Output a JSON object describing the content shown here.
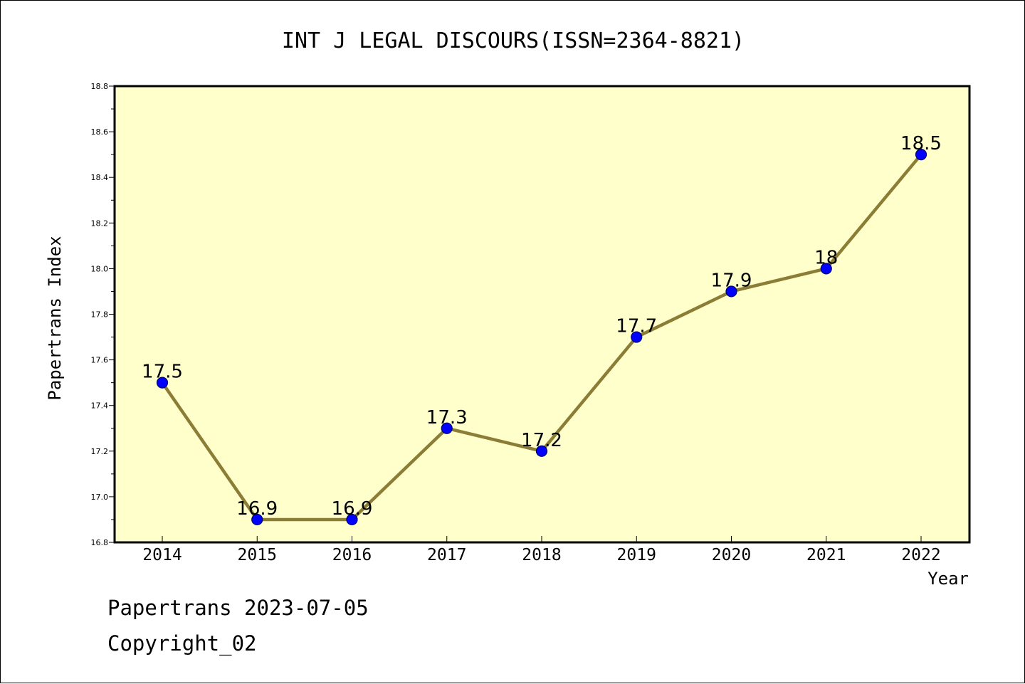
{
  "chart_data": {
    "type": "line",
    "title": "INT J LEGAL DISCOURS(ISSN=2364-8821)",
    "xlabel": "Year",
    "ylabel": "Papertrans Index",
    "categories": [
      "2014",
      "2015",
      "2016",
      "2017",
      "2018",
      "2019",
      "2020",
      "2021",
      "2022"
    ],
    "series": [
      {
        "values": [
          17.5,
          16.9,
          16.9,
          17.3,
          17.2,
          17.7,
          17.9,
          18.0,
          18.5
        ],
        "labels": [
          "17.5",
          "16.9",
          "16.9",
          "17.3",
          "17.2",
          "17.7",
          "17.9",
          "18",
          "18.5"
        ]
      }
    ],
    "ylim": [
      16.8,
      18.8
    ],
    "yticks": [
      "16.8",
      "17.0",
      "17.2",
      "17.4",
      "17.6",
      "17.8",
      "18.0",
      "18.2",
      "18.4",
      "18.6",
      "18.8"
    ],
    "grid": false,
    "colors": {
      "plot_background": "#ffffcc",
      "line": "#8b7d35",
      "marker": "#0000ff"
    }
  },
  "footer": {
    "line1": "Papertrans 2023-07-05",
    "line2": "Copyright_02"
  }
}
